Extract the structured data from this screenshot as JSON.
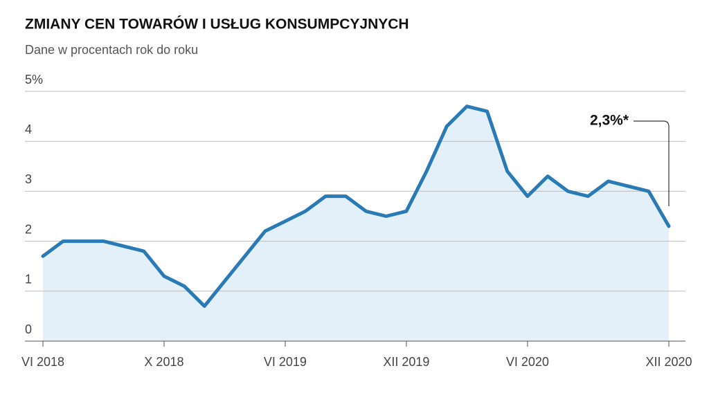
{
  "chart_data": {
    "type": "line",
    "title": "ZMIANY CEN TOWARÓW I USŁUG KONSUMPCYJNYCH",
    "subtitle": "Dane w procentach rok do roku",
    "categories": [
      "VI 2018",
      null,
      null,
      null,
      null,
      null,
      "X 2018",
      null,
      null,
      null,
      null,
      null,
      "VI 2019",
      null,
      null,
      null,
      null,
      null,
      "XII 2019",
      null,
      null,
      null,
      null,
      null,
      "VI 2020",
      null,
      null,
      null,
      null,
      null,
      null,
      "XII 2020"
    ],
    "series": [
      {
        "color": "#2a7ab5",
        "area_color": "#e3f0fa",
        "values": [
          1.7,
          2.0,
          2.0,
          2.0,
          1.9,
          1.8,
          1.3,
          1.1,
          0.7,
          1.2,
          1.7,
          2.2,
          2.4,
          2.6,
          2.9,
          2.9,
          2.6,
          2.5,
          2.6,
          3.4,
          4.3,
          4.7,
          4.6,
          3.4,
          2.9,
          3.3,
          3.0,
          2.9,
          3.2,
          3.1,
          3.0,
          2.3
        ]
      }
    ],
    "ylim": [
      0,
      5
    ],
    "yticks": [
      0,
      1,
      2,
      3,
      4,
      {
        "value": 5,
        "label": "5%"
      }
    ],
    "grid": true,
    "annotation": "2,3%*"
  }
}
